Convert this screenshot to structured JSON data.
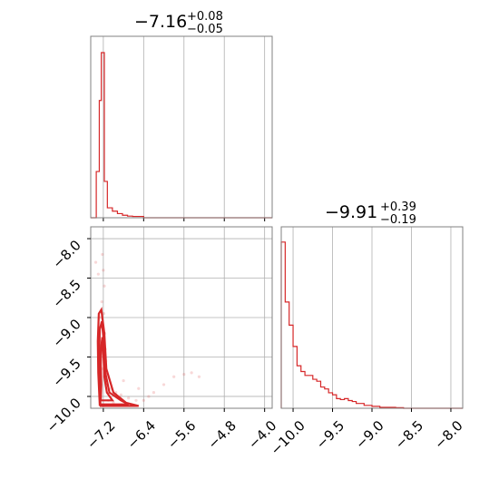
{
  "colors": {
    "series": "#d62728",
    "grid": "#b0b0b0",
    "frame": "#808080"
  },
  "chart_data": [
    {
      "type": "histogram",
      "panel": "top-left marginal",
      "title": {
        "main": "−7.16",
        "sup": "+0.08",
        "sub": "−0.05"
      },
      "xlim": [
        -7.45,
        -3.85
      ],
      "x_ticks": [
        -7.2,
        -6.4,
        -5.6,
        -4.8,
        -4.0
      ],
      "grid": true,
      "bins": [
        [
          -7.45,
          -7.34,
          0
        ],
        [
          -7.34,
          -7.28,
          0.28
        ],
        [
          -7.28,
          -7.24,
          0.71
        ],
        [
          -7.24,
          -7.18,
          1.0
        ],
        [
          -7.18,
          -7.12,
          0.22
        ],
        [
          -7.12,
          -7.02,
          0.06
        ],
        [
          -7.02,
          -6.92,
          0.04
        ],
        [
          -6.92,
          -6.82,
          0.025
        ],
        [
          -6.82,
          -6.72,
          0.015
        ],
        [
          -6.72,
          -6.62,
          0.01
        ],
        [
          -6.62,
          -6.4,
          0.008
        ],
        [
          -6.4,
          -3.85,
          0
        ]
      ]
    },
    {
      "type": "histogram",
      "panel": "bottom-right marginal",
      "title": {
        "main": "−9.91",
        "sup": "+0.39",
        "sub": "−0.19"
      },
      "xlim": [
        -10.15,
        -7.85
      ],
      "x_ticks": [
        -10.0,
        -9.5,
        -9.0,
        -8.5,
        -8.0
      ],
      "x_tick_labels": [
        "−10.0",
        "−9.5",
        "−9.0",
        "−8.5",
        "−8.0"
      ],
      "grid": true,
      "bins": [
        [
          -10.15,
          -10.1,
          0.86
        ],
        [
          -10.1,
          -10.05,
          0.55
        ],
        [
          -10.05,
          -10.0,
          0.43
        ],
        [
          -10.0,
          -9.95,
          0.32
        ],
        [
          -9.95,
          -9.9,
          0.22
        ],
        [
          -9.9,
          -9.85,
          0.19
        ],
        [
          -9.85,
          -9.8,
          0.17
        ],
        [
          -9.8,
          -9.75,
          0.17
        ],
        [
          -9.75,
          -9.7,
          0.15
        ],
        [
          -9.7,
          -9.65,
          0.14
        ],
        [
          -9.65,
          -9.6,
          0.11
        ],
        [
          -9.6,
          -9.55,
          0.1
        ],
        [
          -9.55,
          -9.5,
          0.08
        ],
        [
          -9.5,
          -9.45,
          0.07
        ],
        [
          -9.45,
          -9.4,
          0.05
        ],
        [
          -9.4,
          -9.35,
          0.045
        ],
        [
          -9.35,
          -9.3,
          0.05
        ],
        [
          -9.3,
          -9.25,
          0.04
        ],
        [
          -9.25,
          -9.2,
          0.035
        ],
        [
          -9.2,
          -9.15,
          0.025
        ],
        [
          -9.15,
          -9.1,
          0.025
        ],
        [
          -9.1,
          -9.0,
          0.015
        ],
        [
          -9.0,
          -8.9,
          0.01
        ],
        [
          -8.9,
          -8.7,
          0.005
        ],
        [
          -8.7,
          -8.6,
          0.003
        ],
        [
          -8.6,
          -7.85,
          0
        ]
      ]
    },
    {
      "type": "scatter",
      "panel": "bottom-left joint",
      "xlim": [
        -7.45,
        -3.85
      ],
      "ylim": [
        -10.15,
        -7.85
      ],
      "x_ticks": [
        -7.2,
        -6.4,
        -5.6,
        -4.8,
        -4.0
      ],
      "x_tick_labels": [
        "−7.2",
        "−6.4",
        "−5.6",
        "−4.8",
        "−4.0"
      ],
      "y_ticks": [
        -8.0,
        -8.5,
        -9.0,
        -9.5,
        -10.0
      ],
      "y_tick_labels": [
        "−8.0",
        "−8.5",
        "−9.0",
        "−9.5",
        "−10.0"
      ],
      "grid": true,
      "points": [
        [
          -7.22,
          -8.2
        ],
        [
          -7.2,
          -8.4
        ],
        [
          -7.18,
          -8.6
        ],
        [
          -7.23,
          -8.8
        ],
        [
          -7.19,
          -8.95
        ],
        [
          -7.21,
          -9.1
        ],
        [
          -7.17,
          -9.2
        ],
        [
          -7.24,
          -9.3
        ],
        [
          -7.2,
          -9.45
        ],
        [
          -7.15,
          -9.55
        ],
        [
          -7.22,
          -9.65
        ],
        [
          -7.18,
          -9.75
        ],
        [
          -7.12,
          -9.85
        ],
        [
          -7.05,
          -9.9
        ],
        [
          -6.95,
          -9.95
        ],
        [
          -6.85,
          -9.98
        ],
        [
          -6.7,
          -10.02
        ],
        [
          -6.55,
          -10.05
        ],
        [
          -6.4,
          -10.05
        ],
        [
          -6.2,
          -9.95
        ],
        [
          -6.0,
          -9.85
        ],
        [
          -5.8,
          -9.75
        ],
        [
          -5.6,
          -9.72
        ],
        [
          -5.45,
          -9.7
        ],
        [
          -5.3,
          -9.75
        ],
        [
          -7.3,
          -8.45
        ],
        [
          -7.35,
          -8.3
        ],
        [
          -7.25,
          -9.0
        ],
        [
          -7.16,
          -9.4
        ],
        [
          -7.14,
          -9.8
        ],
        [
          -6.8,
          -9.8
        ],
        [
          -6.5,
          -9.9
        ],
        [
          -6.3,
          -10.0
        ],
        [
          -7.1,
          -10.05
        ],
        [
          -7.0,
          -10.08
        ]
      ],
      "contours": [
        [
          [
            -7.25,
            -10.05
          ],
          [
            -7.24,
            -9.85
          ],
          [
            -7.25,
            -9.6
          ],
          [
            -7.24,
            -9.35
          ],
          [
            -7.22,
            -9.25
          ],
          [
            -7.2,
            -9.45
          ],
          [
            -7.18,
            -9.75
          ],
          [
            -7.13,
            -9.95
          ],
          [
            -7.02,
            -10.05
          ],
          [
            -7.25,
            -10.05
          ]
        ],
        [
          [
            -7.26,
            -10.1
          ],
          [
            -7.27,
            -9.8
          ],
          [
            -7.28,
            -9.45
          ],
          [
            -7.27,
            -9.15
          ],
          [
            -7.23,
            -9.05
          ],
          [
            -7.19,
            -9.3
          ],
          [
            -7.16,
            -9.7
          ],
          [
            -7.08,
            -9.95
          ],
          [
            -6.85,
            -10.05
          ],
          [
            -6.7,
            -10.1
          ],
          [
            -7.26,
            -10.1
          ]
        ],
        [
          [
            -7.27,
            -10.12
          ],
          [
            -7.3,
            -9.7
          ],
          [
            -7.31,
            -9.3
          ],
          [
            -7.29,
            -8.95
          ],
          [
            -7.24,
            -8.9
          ],
          [
            -7.18,
            -9.2
          ],
          [
            -7.14,
            -9.65
          ],
          [
            -7.0,
            -9.95
          ],
          [
            -6.75,
            -10.08
          ],
          [
            -6.5,
            -10.12
          ],
          [
            -7.27,
            -10.12
          ]
        ]
      ]
    }
  ]
}
